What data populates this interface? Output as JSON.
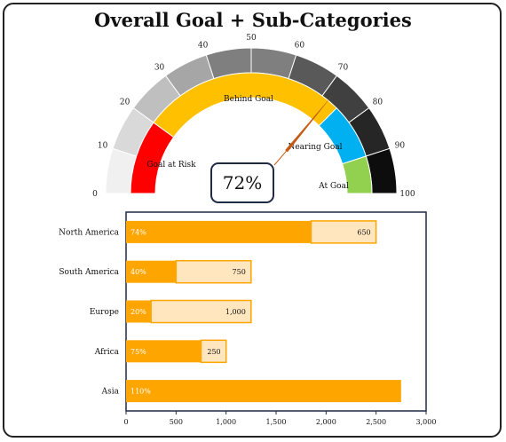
{
  "title": "Overall Goal + Sub-Categories",
  "gauge": {
    "value_label": "72%",
    "value": 72,
    "min": 0,
    "max": 100,
    "tick_labels": [
      "0",
      "10",
      "20",
      "30",
      "40",
      "50",
      "60",
      "70",
      "80",
      "90",
      "100"
    ],
    "outer_band_colors": [
      "#f0f0f0",
      "#d9d9d9",
      "#bfbfbf",
      "#a6a6a6",
      "#7f7f7f",
      "#7f7f7f",
      "#595959",
      "#404040",
      "#262626",
      "#0d0d0d"
    ],
    "zones": [
      {
        "label": "Goal at Risk",
        "from": 0,
        "to": 20,
        "color": "#ff0000"
      },
      {
        "label": "Behind Goal",
        "from": 20,
        "to": 75,
        "color": "#ffc000"
      },
      {
        "label": "Nearing Goal",
        "from": 75,
        "to": 90,
        "color": "#00b0f0"
      },
      {
        "label": "At Goal",
        "from": 90,
        "to": 100,
        "color": "#92d050"
      }
    ],
    "needle_color": "#c55a11"
  },
  "chart_data": {
    "type": "bar",
    "orientation": "horizontal",
    "categories": [
      "North America",
      "South America",
      "Europe",
      "Africa",
      "Asia"
    ],
    "series": [
      {
        "values": [
          1850,
          500,
          250,
          750,
          2750
        ],
        "color": "#ffa500"
      },
      {
        "values": [
          650,
          750,
          1000,
          250,
          0
        ],
        "color": "#ffe6bf"
      }
    ],
    "bar_percent_labels": [
      "74%",
      "40%",
      "20%",
      "75%",
      "110%"
    ],
    "remaining_labels": [
      "650",
      "750",
      "1,000",
      "250",
      ""
    ],
    "x_ticks": [
      "0",
      "500",
      "1,000",
      "1,500",
      "2,000",
      "2,500",
      "3,000"
    ],
    "xlim": [
      0,
      3000
    ],
    "grid": false
  }
}
